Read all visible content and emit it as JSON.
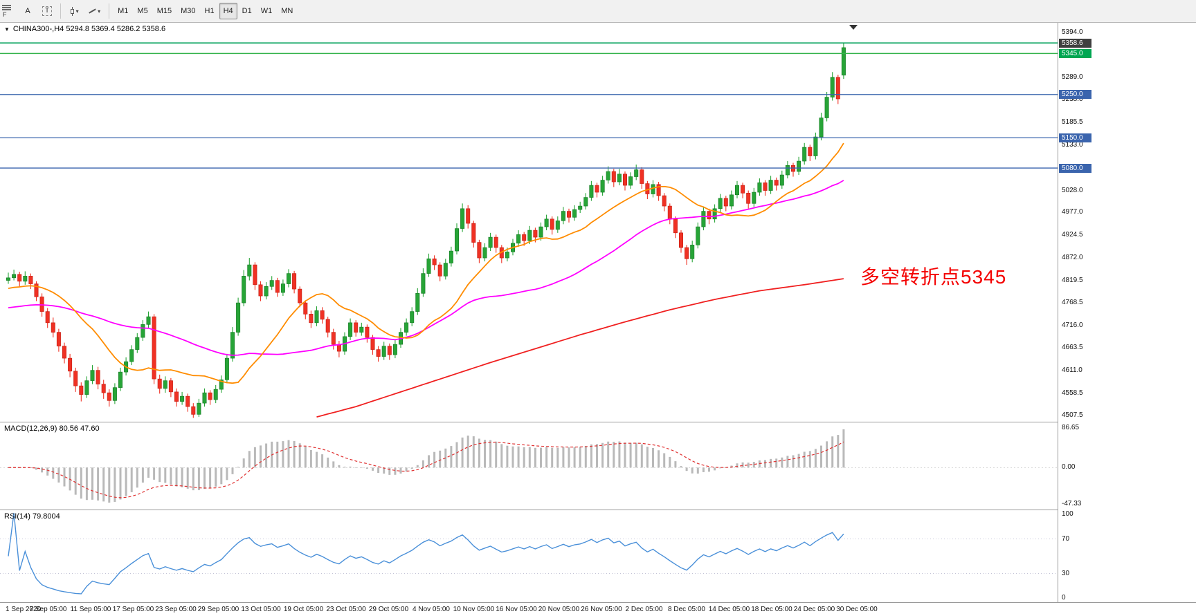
{
  "icons": {
    "caret_down": "▾"
  },
  "toolbar": {
    "cursor_label": "A",
    "text_tool_label": "T",
    "f_label": "F",
    "timeframes": [
      "M1",
      "M5",
      "M15",
      "M30",
      "H1",
      "H4",
      "D1",
      "W1",
      "MN"
    ],
    "active_timeframe": "H4"
  },
  "chart": {
    "title_marker": "▼",
    "title": "CHINA300-,H4 5294.8 5369.4 5286.2 5358.6",
    "symbol": "CHINA300-",
    "period": "H4",
    "annotation": {
      "text": "多空转折点5345",
      "color": "#f40000"
    }
  },
  "indicators": {
    "macd": {
      "title": "MACD(12,26,9) 80.56 47.60",
      "fast": 12,
      "slow": 26,
      "signal": 9,
      "current_macd": 80.56,
      "current_signal": 47.6,
      "scale_labels": [
        "86.65",
        "0.00",
        "-47.33"
      ]
    },
    "rsi": {
      "title": "RSI(14) 79.8004",
      "period": 14,
      "current": 79.8004,
      "scale_labels": [
        "100",
        "70",
        "30",
        "0"
      ],
      "levels": [
        70,
        30
      ]
    }
  },
  "colors": {
    "up": "#27a437",
    "up_stroke": "#157a23",
    "down": "#ef3124",
    "down_stroke": "#c21d12",
    "macd_hist": "#b9b9b9",
    "macd_signal": "#e03131",
    "rsi_line": "#4a90d9",
    "tag_current": "#3f3f3f",
    "tag_green": "#00a651",
    "tag_blue": "#3a64ad"
  },
  "chart_data": {
    "type": "candlestick",
    "symbol": "CHINA300-",
    "timeframe": "H4",
    "ylim": [
      4493,
      5416
    ],
    "last_bar": {
      "open": 5294.8,
      "high": 5369.4,
      "low": 5286.2,
      "close": 5358.6
    },
    "price_ticks": [
      "5394.0",
      "5289.0",
      "5238.0",
      "5185.5",
      "5133.0",
      "5028.0",
      "4977.0",
      "4924.5",
      "4872.0",
      "4819.5",
      "4768.5",
      "4716.0",
      "4663.5",
      "4611.0",
      "4558.5",
      "4507.5"
    ],
    "price_tags": [
      {
        "text": "5358.6",
        "value": 5358.6,
        "bg": "#3f3f3f",
        "above": true
      },
      {
        "text": "5345.0",
        "value": 5345.0,
        "bg": "#00a651"
      },
      {
        "text": "5250.0",
        "value": 5250.0,
        "bg": "#3a64ad"
      },
      {
        "text": "5150.0",
        "value": 5150.0,
        "bg": "#3a64ad"
      },
      {
        "text": "5080.0",
        "value": 5080.0,
        "bg": "#3a64ad"
      }
    ],
    "horizontal_lines": [
      {
        "price": 5369.4,
        "color": "#00a05a",
        "width": 1.6
      },
      {
        "price": 5345.0,
        "color": "#33b34a",
        "width": 1.6
      },
      {
        "price": 5250.0,
        "color": "#3a64ad",
        "width": 1.3
      },
      {
        "price": 5150.0,
        "color": "#3a64ad",
        "width": 1.3
      },
      {
        "price": 5080.0,
        "color": "#3a64ad",
        "width": 1.3
      }
    ],
    "x_labels": [
      "1 Sep 2020",
      "7 Sep 05:00",
      "11 Sep 05:00",
      "17 Sep 05:00",
      "23 Sep 05:00",
      "29 Sep 05:00",
      "13 Oct 05:00",
      "19 Oct 05:00",
      "23 Oct 05:00",
      "29 Oct 05:00",
      "4 Nov 05:00",
      "10 Nov 05:00",
      "16 Nov 05:00",
      "20 Nov 05:00",
      "26 Nov 05:00",
      "2 Dec 05:00",
      "8 Dec 05:00",
      "14 Dec 05:00",
      "18 Dec 05:00",
      "24 Dec 05:00",
      "30 Dec 05:00"
    ],
    "moving_averages": {
      "fast": {
        "period": 16,
        "seed": 4800,
        "color": "#ff8c00"
      },
      "mid": {
        "period": 44,
        "seed": 4755,
        "color": "#ff00ff"
      },
      "slow": {
        "color": "#f02020",
        "anchors": [
          [
            55,
            4504
          ],
          [
            62,
            4528
          ],
          [
            70,
            4562
          ],
          [
            78,
            4596
          ],
          [
            86,
            4630
          ],
          [
            94,
            4662
          ],
          [
            102,
            4694
          ],
          [
            110,
            4724
          ],
          [
            118,
            4752
          ],
          [
            126,
            4776
          ],
          [
            134,
            4796
          ],
          [
            142,
            4810
          ],
          [
            149,
            4824
          ]
        ]
      }
    },
    "bars": [
      [
        4820,
        4838,
        4812,
        4826
      ],
      [
        4826,
        4845,
        4820,
        4834
      ],
      [
        4834,
        4840,
        4806,
        4818
      ],
      [
        4818,
        4841,
        4810,
        4830
      ],
      [
        4830,
        4836,
        4800,
        4812
      ],
      [
        4812,
        4818,
        4772,
        4782
      ],
      [
        4782,
        4790,
        4736,
        4748
      ],
      [
        4748,
        4756,
        4710,
        4722
      ],
      [
        4722,
        4734,
        4688,
        4700
      ],
      [
        4700,
        4708,
        4655,
        4668
      ],
      [
        4668,
        4676,
        4628,
        4640
      ],
      [
        4640,
        4650,
        4596,
        4610
      ],
      [
        4610,
        4618,
        4562,
        4576
      ],
      [
        4576,
        4584,
        4540,
        4556
      ],
      [
        4556,
        4598,
        4548,
        4588
      ],
      [
        4588,
        4624,
        4580,
        4612
      ],
      [
        4612,
        4620,
        4568,
        4580
      ],
      [
        4580,
        4590,
        4546,
        4560
      ],
      [
        4560,
        4568,
        4528,
        4542
      ],
      [
        4542,
        4582,
        4534,
        4572
      ],
      [
        4572,
        4618,
        4564,
        4608
      ],
      [
        4608,
        4642,
        4600,
        4632
      ],
      [
        4632,
        4670,
        4624,
        4660
      ],
      [
        4660,
        4698,
        4652,
        4688
      ],
      [
        4688,
        4728,
        4680,
        4718
      ],
      [
        4718,
        4748,
        4710,
        4736
      ],
      [
        4736,
        4742,
        4580,
        4592
      ],
      [
        4592,
        4602,
        4558,
        4570
      ],
      [
        4570,
        4598,
        4560,
        4588
      ],
      [
        4588,
        4594,
        4550,
        4562
      ],
      [
        4562,
        4570,
        4528,
        4540
      ],
      [
        4540,
        4562,
        4532,
        4552
      ],
      [
        4552,
        4558,
        4516,
        4528
      ],
      [
        4528,
        4536,
        4502,
        4510
      ],
      [
        4510,
        4546,
        4504,
        4536
      ],
      [
        4536,
        4570,
        4528,
        4560
      ],
      [
        4560,
        4566,
        4532,
        4544
      ],
      [
        4544,
        4578,
        4536,
        4568
      ],
      [
        4568,
        4600,
        4560,
        4590
      ],
      [
        4590,
        4650,
        4582,
        4640
      ],
      [
        4640,
        4712,
        4632,
        4700
      ],
      [
        4700,
        4780,
        4692,
        4768
      ],
      [
        4768,
        4844,
        4760,
        4830
      ],
      [
        4830,
        4872,
        4820,
        4856
      ],
      [
        4856,
        4862,
        4798,
        4810
      ],
      [
        4810,
        4818,
        4772,
        4784
      ],
      [
        4784,
        4816,
        4776,
        4806
      ],
      [
        4806,
        4830,
        4798,
        4820
      ],
      [
        4820,
        4826,
        4782,
        4792
      ],
      [
        4792,
        4822,
        4784,
        4812
      ],
      [
        4812,
        4846,
        4804,
        4836
      ],
      [
        4836,
        4842,
        4790,
        4800
      ],
      [
        4800,
        4806,
        4758,
        4768
      ],
      [
        4768,
        4774,
        4730,
        4742
      ],
      [
        4742,
        4750,
        4710,
        4722
      ],
      [
        4722,
        4760,
        4714,
        4750
      ],
      [
        4750,
        4758,
        4720,
        4730
      ],
      [
        4730,
        4736,
        4688,
        4700
      ],
      [
        4700,
        4708,
        4660,
        4672
      ],
      [
        4672,
        4680,
        4642,
        4656
      ],
      [
        4656,
        4700,
        4648,
        4690
      ],
      [
        4690,
        4732,
        4682,
        4722
      ],
      [
        4722,
        4728,
        4690,
        4700
      ],
      [
        4700,
        4722,
        4692,
        4712
      ],
      [
        4712,
        4718,
        4676,
        4688
      ],
      [
        4688,
        4694,
        4648,
        4660
      ],
      [
        4660,
        4668,
        4632,
        4644
      ],
      [
        4644,
        4678,
        4636,
        4668
      ],
      [
        4668,
        4674,
        4636,
        4648
      ],
      [
        4648,
        4682,
        4640,
        4672
      ],
      [
        4672,
        4710,
        4664,
        4700
      ],
      [
        4700,
        4732,
        4692,
        4722
      ],
      [
        4722,
        4758,
        4714,
        4748
      ],
      [
        4748,
        4802,
        4740,
        4790
      ],
      [
        4790,
        4848,
        4782,
        4836
      ],
      [
        4836,
        4882,
        4828,
        4870
      ],
      [
        4870,
        4878,
        4844,
        4856
      ],
      [
        4856,
        4862,
        4818,
        4830
      ],
      [
        4830,
        4870,
        4822,
        4860
      ],
      [
        4860,
        4898,
        4852,
        4888
      ],
      [
        4888,
        4952,
        4880,
        4940
      ],
      [
        4940,
        4998,
        4932,
        4986
      ],
      [
        4986,
        4994,
        4940,
        4952
      ],
      [
        4952,
        4958,
        4896,
        4908
      ],
      [
        4908,
        4914,
        4860,
        4872
      ],
      [
        4872,
        4906,
        4864,
        4896
      ],
      [
        4896,
        4930,
        4888,
        4920
      ],
      [
        4920,
        4926,
        4884,
        4896
      ],
      [
        4896,
        4902,
        4860,
        4872
      ],
      [
        4872,
        4896,
        4864,
        4886
      ],
      [
        4886,
        4916,
        4878,
        4906
      ],
      [
        4906,
        4936,
        4898,
        4926
      ],
      [
        4926,
        4932,
        4900,
        4912
      ],
      [
        4912,
        4946,
        4904,
        4936
      ],
      [
        4936,
        4942,
        4908,
        4920
      ],
      [
        4920,
        4954,
        4912,
        4944
      ],
      [
        4944,
        4972,
        4936,
        4962
      ],
      [
        4962,
        4968,
        4926,
        4938
      ],
      [
        4938,
        4968,
        4930,
        4958
      ],
      [
        4958,
        4990,
        4950,
        4980
      ],
      [
        4980,
        4986,
        4954,
        4966
      ],
      [
        4966,
        4994,
        4958,
        4984
      ],
      [
        4984,
        5002,
        4976,
        4992
      ],
      [
        4992,
        5022,
        4984,
        5012
      ],
      [
        5012,
        5050,
        5004,
        5040
      ],
      [
        5040,
        5046,
        5012,
        5024
      ],
      [
        5024,
        5062,
        5016,
        5052
      ],
      [
        5052,
        5084,
        5044,
        5072
      ],
      [
        5072,
        5078,
        5036,
        5048
      ],
      [
        5048,
        5078,
        5040,
        5066
      ],
      [
        5066,
        5072,
        5028,
        5040
      ],
      [
        5040,
        5070,
        5032,
        5060
      ],
      [
        5060,
        5088,
        5052,
        5076
      ],
      [
        5076,
        5082,
        5032,
        5044
      ],
      [
        5044,
        5050,
        5008,
        5020
      ],
      [
        5020,
        5052,
        5012,
        5042
      ],
      [
        5042,
        5048,
        5004,
        5016
      ],
      [
        5016,
        5022,
        4980,
        4992
      ],
      [
        4992,
        4998,
        4950,
        4962
      ],
      [
        4962,
        4968,
        4918,
        4930
      ],
      [
        4930,
        4936,
        4884,
        4896
      ],
      [
        4896,
        4902,
        4856,
        4870
      ],
      [
        4870,
        4912,
        4862,
        4902
      ],
      [
        4902,
        4954,
        4894,
        4944
      ],
      [
        4944,
        4990,
        4936,
        4980
      ],
      [
        4980,
        4986,
        4950,
        4962
      ],
      [
        4962,
        4996,
        4954,
        4986
      ],
      [
        4986,
        5020,
        4978,
        5010
      ],
      [
        5010,
        5016,
        4980,
        4992
      ],
      [
        4992,
        5028,
        4984,
        5018
      ],
      [
        5018,
        5050,
        5010,
        5040
      ],
      [
        5040,
        5046,
        5010,
        5022
      ],
      [
        5022,
        5028,
        4986,
        4998
      ],
      [
        4998,
        5034,
        4990,
        5024
      ],
      [
        5024,
        5056,
        5016,
        5046
      ],
      [
        5046,
        5052,
        5016,
        5028
      ],
      [
        5028,
        5062,
        5020,
        5052
      ],
      [
        5052,
        5058,
        5028,
        5040
      ],
      [
        5040,
        5074,
        5032,
        5064
      ],
      [
        5064,
        5096,
        5056,
        5086
      ],
      [
        5086,
        5092,
        5060,
        5072
      ],
      [
        5072,
        5106,
        5064,
        5096
      ],
      [
        5096,
        5138,
        5088,
        5128
      ],
      [
        5128,
        5134,
        5096,
        5108
      ],
      [
        5108,
        5162,
        5100,
        5152
      ],
      [
        5152,
        5208,
        5144,
        5196
      ],
      [
        5196,
        5256,
        5188,
        5244
      ],
      [
        5244,
        5302,
        5236,
        5290
      ],
      [
        5290,
        5296,
        5228,
        5240
      ],
      [
        5294.8,
        5369.4,
        5286.2,
        5358.6
      ]
    ]
  }
}
